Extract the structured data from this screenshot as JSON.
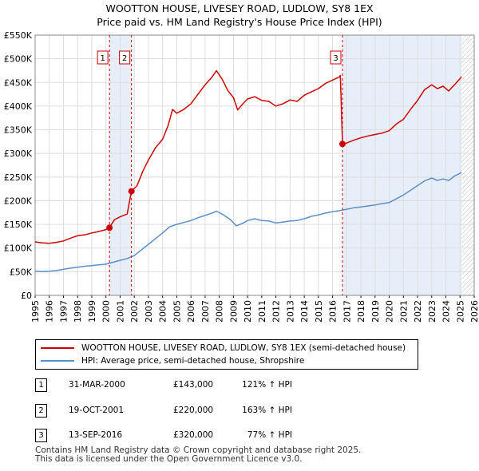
{
  "title": {
    "line1": "WOOTTON HOUSE, LIVESEY ROAD, LUDLOW, SY8 1EX",
    "line2": "Price paid vs. HM Land Registry's House Price Index (HPI)"
  },
  "chart_data": {
    "type": "line",
    "title": "Price paid vs. HM Land Registry's House Price Index (HPI)",
    "xlim": [
      1995,
      2026
    ],
    "ylim": [
      0,
      550000
    ],
    "y_ticks": [
      {
        "value": 0,
        "label": "£0"
      },
      {
        "value": 50000,
        "label": "£50K"
      },
      {
        "value": 100000,
        "label": "£100K"
      },
      {
        "value": 150000,
        "label": "£150K"
      },
      {
        "value": 200000,
        "label": "£200K"
      },
      {
        "value": 250000,
        "label": "£250K"
      },
      {
        "value": 300000,
        "label": "£300K"
      },
      {
        "value": 350000,
        "label": "£350K"
      },
      {
        "value": 400000,
        "label": "£400K"
      },
      {
        "value": 450000,
        "label": "£450K"
      },
      {
        "value": 500000,
        "label": "£500K"
      },
      {
        "value": 550000,
        "label": "£550K"
      }
    ],
    "x_ticks": [
      "1995",
      "1996",
      "1997",
      "1998",
      "1999",
      "2000",
      "2001",
      "2002",
      "2003",
      "2004",
      "2005",
      "2006",
      "2007",
      "2008",
      "2009",
      "2010",
      "2011",
      "2012",
      "2013",
      "2014",
      "2015",
      "2016",
      "2017",
      "2018",
      "2019",
      "2020",
      "2021",
      "2022",
      "2023",
      "2024",
      "2025",
      "2026"
    ],
    "grid": true,
    "shaded_periods": [
      [
        2000.25,
        2001.8
      ],
      [
        2016.7,
        2025.1
      ]
    ],
    "hatched_after": 2025.1,
    "series": [
      {
        "name": "WOOTTON HOUSE, LIVESEY ROAD, LUDLOW, SY8 1EX (semi-detached house)",
        "color": "#cc0000",
        "points": [
          [
            1995.0,
            113000
          ],
          [
            1995.5,
            111000
          ],
          [
            1996.0,
            110000
          ],
          [
            1996.5,
            112000
          ],
          [
            1997.0,
            115000
          ],
          [
            1997.5,
            121000
          ],
          [
            1998.0,
            126000
          ],
          [
            1998.5,
            128000
          ],
          [
            1999.0,
            132000
          ],
          [
            1999.5,
            135000
          ],
          [
            2000.0,
            139000
          ],
          [
            2000.25,
            143000
          ],
          [
            2000.6,
            160000
          ],
          [
            2001.0,
            166000
          ],
          [
            2001.5,
            172000
          ],
          [
            2001.8,
            220000
          ],
          [
            2002.2,
            232000
          ],
          [
            2002.6,
            262000
          ],
          [
            2003.0,
            286000
          ],
          [
            2003.5,
            312000
          ],
          [
            2004.0,
            330000
          ],
          [
            2004.4,
            360000
          ],
          [
            2004.7,
            393000
          ],
          [
            2005.0,
            385000
          ],
          [
            2005.5,
            393000
          ],
          [
            2006.0,
            405000
          ],
          [
            2006.5,
            425000
          ],
          [
            2007.0,
            445000
          ],
          [
            2007.5,
            462000
          ],
          [
            2007.8,
            475000
          ],
          [
            2008.2,
            457000
          ],
          [
            2008.6,
            433000
          ],
          [
            2009.0,
            418000
          ],
          [
            2009.3,
            392000
          ],
          [
            2009.7,
            406000
          ],
          [
            2010.0,
            415000
          ],
          [
            2010.5,
            420000
          ],
          [
            2011.0,
            412000
          ],
          [
            2011.5,
            410000
          ],
          [
            2012.0,
            400000
          ],
          [
            2012.5,
            405000
          ],
          [
            2013.0,
            413000
          ],
          [
            2013.5,
            410000
          ],
          [
            2014.0,
            423000
          ],
          [
            2014.5,
            430000
          ],
          [
            2015.0,
            437000
          ],
          [
            2015.5,
            448000
          ],
          [
            2016.0,
            455000
          ],
          [
            2016.5,
            462000
          ],
          [
            2016.55,
            465000
          ],
          [
            2016.7,
            320000
          ],
          [
            2017.0,
            322000
          ],
          [
            2017.5,
            328000
          ],
          [
            2018.0,
            333000
          ],
          [
            2018.5,
            337000
          ],
          [
            2019.0,
            340000
          ],
          [
            2019.5,
            343000
          ],
          [
            2020.0,
            348000
          ],
          [
            2020.5,
            362000
          ],
          [
            2021.0,
            372000
          ],
          [
            2021.5,
            393000
          ],
          [
            2022.0,
            412000
          ],
          [
            2022.5,
            435000
          ],
          [
            2023.0,
            445000
          ],
          [
            2023.4,
            437000
          ],
          [
            2023.8,
            442000
          ],
          [
            2024.2,
            432000
          ],
          [
            2024.6,
            445000
          ],
          [
            2025.0,
            458000
          ],
          [
            2025.1,
            462000
          ]
        ]
      },
      {
        "name": "HPI: Average price, semi-detached house, Shropshire",
        "color": "#5b8fc9",
        "points": [
          [
            1995.0,
            51000
          ],
          [
            1995.5,
            50500
          ],
          [
            1996.0,
            51000
          ],
          [
            1996.5,
            52500
          ],
          [
            1997.0,
            55000
          ],
          [
            1997.5,
            57500
          ],
          [
            1998.0,
            59500
          ],
          [
            1998.5,
            61500
          ],
          [
            1999.0,
            63000
          ],
          [
            1999.5,
            64500
          ],
          [
            2000.0,
            66000
          ],
          [
            2000.5,
            70000
          ],
          [
            2001.0,
            74000
          ],
          [
            2001.5,
            78000
          ],
          [
            2002.0,
            84000
          ],
          [
            2002.5,
            96000
          ],
          [
            2003.0,
            108000
          ],
          [
            2003.5,
            120000
          ],
          [
            2004.0,
            132000
          ],
          [
            2004.5,
            145000
          ],
          [
            2005.0,
            150000
          ],
          [
            2005.5,
            154000
          ],
          [
            2006.0,
            158000
          ],
          [
            2006.5,
            164000
          ],
          [
            2007.0,
            169000
          ],
          [
            2007.5,
            174000
          ],
          [
            2007.8,
            178000
          ],
          [
            2008.3,
            170000
          ],
          [
            2008.8,
            160000
          ],
          [
            2009.2,
            147000
          ],
          [
            2009.7,
            153000
          ],
          [
            2010.0,
            158000
          ],
          [
            2010.5,
            162000
          ],
          [
            2011.0,
            158000
          ],
          [
            2011.5,
            157000
          ],
          [
            2012.0,
            153000
          ],
          [
            2012.5,
            155000
          ],
          [
            2013.0,
            157000
          ],
          [
            2013.5,
            158000
          ],
          [
            2014.0,
            162000
          ],
          [
            2014.5,
            167000
          ],
          [
            2015.0,
            170000
          ],
          [
            2015.5,
            174000
          ],
          [
            2016.0,
            177000
          ],
          [
            2016.5,
            179000
          ],
          [
            2017.0,
            182000
          ],
          [
            2017.5,
            185000
          ],
          [
            2018.0,
            187000
          ],
          [
            2018.5,
            189000
          ],
          [
            2019.0,
            191000
          ],
          [
            2019.5,
            194000
          ],
          [
            2020.0,
            196000
          ],
          [
            2020.5,
            204000
          ],
          [
            2021.0,
            212000
          ],
          [
            2021.5,
            222000
          ],
          [
            2022.0,
            232000
          ],
          [
            2022.5,
            242000
          ],
          [
            2023.0,
            248000
          ],
          [
            2023.4,
            243000
          ],
          [
            2023.8,
            246000
          ],
          [
            2024.2,
            243000
          ],
          [
            2024.6,
            252000
          ],
          [
            2025.0,
            258000
          ],
          [
            2025.1,
            260000
          ]
        ]
      }
    ],
    "sale_points": [
      {
        "num": "1",
        "x": 2000.25,
        "value": 143000
      },
      {
        "num": "2",
        "x": 2001.8,
        "value": 220000
      },
      {
        "num": "3",
        "x": 2016.7,
        "value": 320000
      }
    ]
  },
  "legend": {
    "property_label": "WOOTTON HOUSE, LIVESEY ROAD, LUDLOW, SY8 1EX (semi-detached house)",
    "hpi_label": "HPI: Average price, semi-detached house, Shropshire"
  },
  "sales": [
    {
      "num": "1",
      "date": "31-MAR-2000",
      "price": "£143,000",
      "hpi": "121% ↑ HPI"
    },
    {
      "num": "2",
      "date": "19-OCT-2001",
      "price": "£220,000",
      "hpi": "163% ↑ HPI"
    },
    {
      "num": "3",
      "date": "13-SEP-2016",
      "price": "£320,000",
      "hpi": "77% ↑ HPI"
    }
  ],
  "footer": {
    "line1": "Contains HM Land Registry data © Crown copyright and database right 2025.",
    "line2": "This data is licensed under the Open Government Licence v3.0."
  }
}
